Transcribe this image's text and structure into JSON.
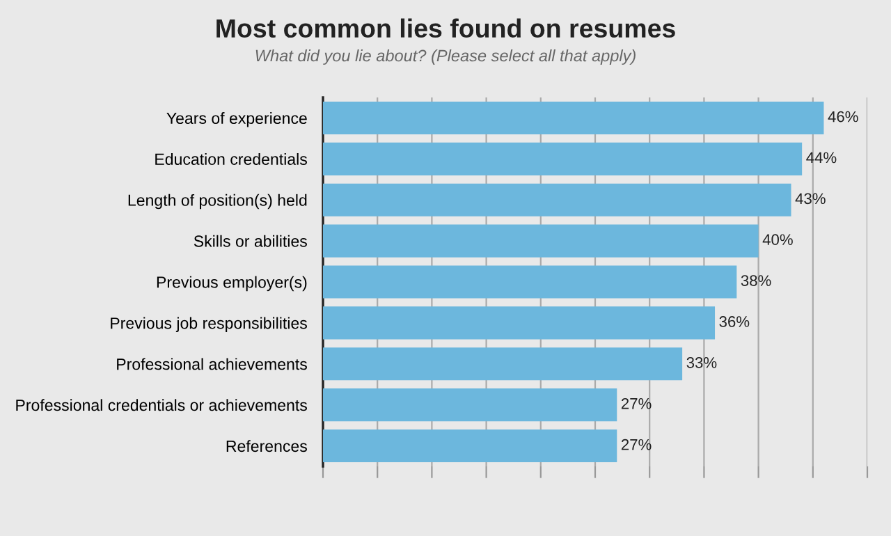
{
  "chart_data": {
    "type": "bar",
    "orientation": "horizontal",
    "title": "Most common lies found on resumes",
    "subtitle": "What did you lie about? (Please select all that apply)",
    "categories": [
      "Years of experience",
      "Education credentials",
      "Length of position(s) held",
      "Skills or abilities",
      "Previous employer(s)",
      "Previous job responsibilities",
      "Professional achievements",
      "Professional credentials or achievements",
      "References"
    ],
    "values": [
      46,
      44,
      43,
      40,
      38,
      36,
      33,
      27,
      27
    ],
    "value_labels": [
      "46%",
      "44%",
      "43%",
      "40%",
      "38%",
      "36%",
      "33%",
      "27%",
      "27%"
    ],
    "color": "#6cb7dd",
    "xlim": [
      0,
      50
    ],
    "xticks": [
      {
        "value": 0,
        "label": null
      },
      {
        "value": 5,
        "label": null
      },
      {
        "value": 10,
        "label": null
      },
      {
        "value": 15,
        "label": null
      },
      {
        "value": 20,
        "label": null
      },
      {
        "value": 25,
        "label": null
      },
      {
        "value": 30,
        "label": null
      },
      {
        "value": 35,
        "label": null
      },
      {
        "value": 40,
        "label": null
      },
      {
        "value": 45,
        "label": null
      },
      {
        "value": 50,
        "label": null
      }
    ],
    "tick_labels": "y",
    "grid": "x"
  }
}
